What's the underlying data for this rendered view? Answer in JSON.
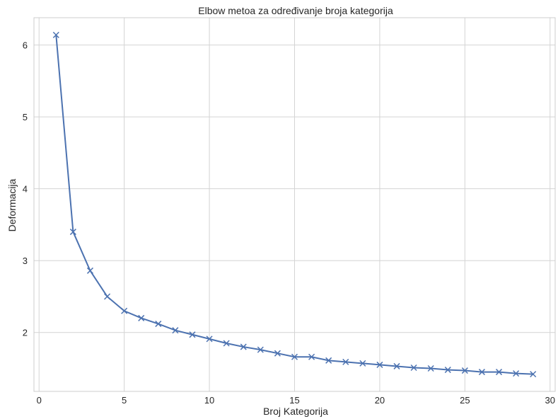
{
  "chart_data": {
    "type": "line",
    "title": "Elbow metoa za određivanje broja kategorija",
    "xlabel": "Broj Kategorija",
    "ylabel": "Deformacija",
    "xlim": [
      -0.3,
      30.3
    ],
    "ylim": [
      1.18,
      6.38
    ],
    "xticks": [
      0,
      5,
      10,
      15,
      20,
      25,
      30
    ],
    "yticks": [
      2,
      3,
      4,
      5,
      6
    ],
    "grid": true,
    "marker": "x",
    "line_color": "#4c72b0",
    "grid_color": "#d4d4d4",
    "x": [
      1,
      2,
      3,
      4,
      5,
      6,
      7,
      8,
      9,
      10,
      11,
      12,
      13,
      14,
      15,
      16,
      17,
      18,
      19,
      20,
      21,
      22,
      23,
      24,
      25,
      26,
      27,
      28,
      29
    ],
    "y": [
      6.14,
      3.4,
      2.86,
      2.5,
      2.3,
      2.2,
      2.12,
      2.03,
      1.97,
      1.91,
      1.85,
      1.8,
      1.76,
      1.71,
      1.66,
      1.66,
      1.61,
      1.59,
      1.57,
      1.55,
      1.53,
      1.51,
      1.5,
      1.48,
      1.47,
      1.45,
      1.45,
      1.43,
      1.42
    ]
  }
}
